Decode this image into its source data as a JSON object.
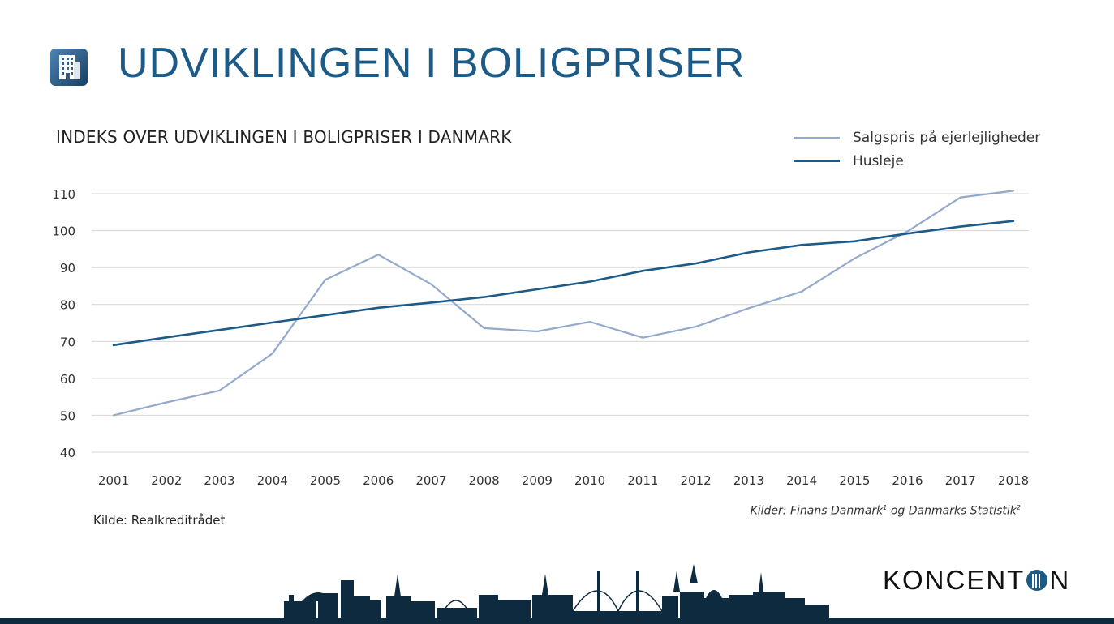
{
  "header": {
    "title": "UDVIKLINGEN I BOLIGPRISER",
    "icon": "building-icon"
  },
  "chart_data": {
    "type": "line",
    "title": "INDEKS OVER UDVIKLINGEN I BOLIGPRISER I DANMARK",
    "xlabel": "",
    "ylabel": "",
    "categories": [
      "2001",
      "2002",
      "2003",
      "2004",
      "2005",
      "2006",
      "2007",
      "2008",
      "2009",
      "2010",
      "2011",
      "2012",
      "2013",
      "2014",
      "2015",
      "2016",
      "2017",
      "2018"
    ],
    "series": [
      {
        "name": "Salgspris på ejerlejligheder",
        "color": "#94a9cc",
        "values": [
          50,
          53.5,
          56.7,
          66.7,
          86.7,
          93.5,
          85.5,
          73.6,
          72.7,
          75.3,
          71,
          74,
          79,
          83.5,
          92.5,
          99.8,
          109,
          110.8
        ]
      },
      {
        "name": "Husleje",
        "color": "#1c5b87",
        "values": [
          69,
          71.1,
          73.1,
          75.1,
          77.1,
          79.1,
          80.5,
          82,
          84.1,
          86.2,
          89.1,
          91.1,
          94.1,
          96.1,
          97.1,
          99.2,
          101.1,
          102.6
        ]
      }
    ],
    "yticks": [
      40,
      50,
      60,
      70,
      80,
      90,
      100,
      110
    ],
    "ylim": [
      40,
      110
    ],
    "grid": true,
    "legend_position": "top-right"
  },
  "sources": {
    "left": "Kilde: Realkreditrådet",
    "right_prefix": "Kilder: Finans Danmark",
    "right_sup1": "1",
    "right_mid": " og Danmarks Statistik",
    "right_sup2": "2"
  },
  "brand": {
    "part1": "KONCENT",
    "part2": "N"
  },
  "colors": {
    "accent": "#1c5b87",
    "light_series": "#94a9cc",
    "skyline": "#0d2a3f"
  }
}
